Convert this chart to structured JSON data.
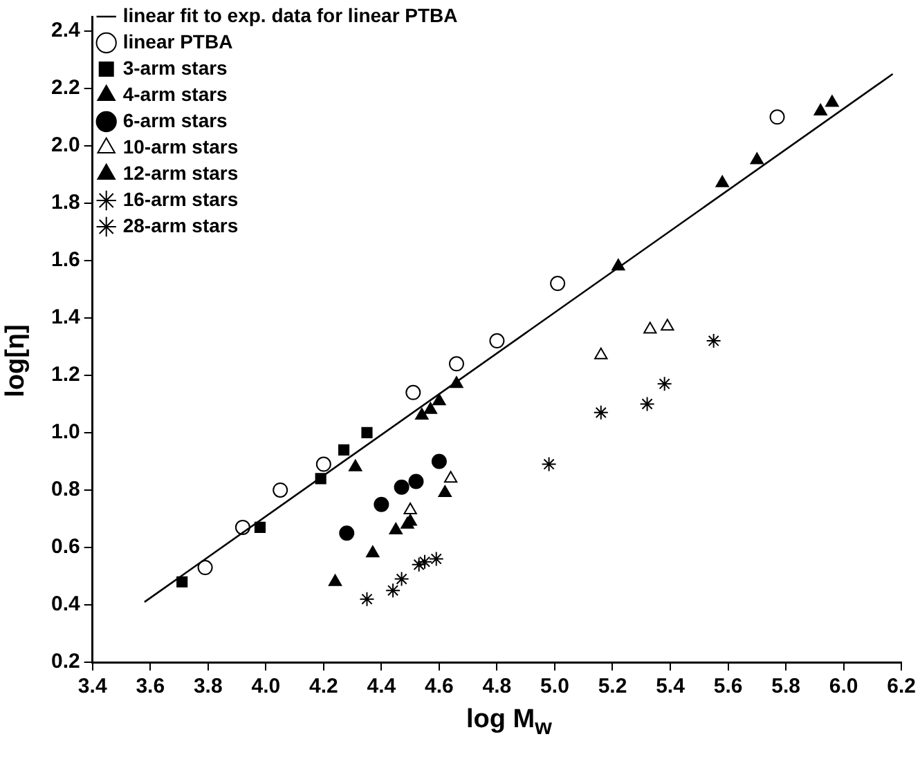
{
  "chart_data": {
    "type": "scatter",
    "xlabel": "log M$_{w}$",
    "ylabel": "log[η]",
    "xlim": [
      3.4,
      6.2
    ],
    "ylim": [
      0.2,
      2.45
    ],
    "xticks": [
      3.4,
      3.6,
      3.8,
      {
        "value": 4,
        "label": "4.0"
      },
      4.2,
      4.4,
      4.6,
      4.8,
      {
        "value": 5,
        "label": "5.0"
      },
      5.2,
      5.4,
      5.6,
      5.8,
      {
        "value": 6,
        "label": "6.0"
      },
      6.2
    ],
    "yticks": [
      0.2,
      0.4,
      0.6,
      0.8,
      {
        "value": 1,
        "label": "1.0"
      },
      1.2,
      1.4,
      1.6,
      1.8,
      {
        "value": 2,
        "label": "2.0"
      },
      2.2,
      2.4
    ],
    "grid": false,
    "legend": "top left",
    "series": [
      {
        "name": "linear fit to exp. data for linear PTBA",
        "type": "line",
        "color": "#000000",
        "marker": "none",
        "line_style": "solid",
        "x": [
          3.58,
          6.17
        ],
        "values": [
          0.41,
          2.25
        ]
      },
      {
        "name": "linear PTBA",
        "color": "#000000",
        "marker": "circle",
        "colors": [
          "#ffffff",
          "#ffffff",
          "#ffffff",
          "#ffffff",
          "#ffffff",
          "#ffffff",
          "#ffffff",
          "#ffffff",
          "#ffffff"
        ],
        "x": [
          3.79,
          3.92,
          4.05,
          4.2,
          4.51,
          4.66,
          4.8,
          5.01,
          5.77
        ],
        "values": [
          0.53,
          0.67,
          0.8,
          0.89,
          1.14,
          1.24,
          1.32,
          1.52,
          2.1
        ]
      },
      {
        "name": "3-arm stars",
        "color": "#000000",
        "marker": "square",
        "x": [
          3.71,
          3.98,
          4.19,
          4.27,
          4.35
        ],
        "values": [
          0.48,
          0.67,
          0.84,
          0.94,
          1.0
        ]
      },
      {
        "name": "4-arm stars",
        "color": "#000000",
        "marker": "triangle",
        "x": [
          4.31,
          4.54,
          4.57,
          4.6,
          4.66,
          5.22,
          5.58,
          5.7,
          5.92,
          5.96
        ],
        "values": [
          0.88,
          1.06,
          1.08,
          1.11,
          1.17,
          1.58,
          1.87,
          1.95,
          2.12,
          2.15
        ]
      },
      {
        "name": "6-arm stars",
        "color": "#000000",
        "marker": "circle",
        "x": [
          4.28,
          4.4,
          4.47,
          4.52,
          4.6
        ],
        "values": [
          0.65,
          0.75,
          0.81,
          0.83,
          0.9
        ]
      },
      {
        "name": "10-arm stars",
        "color": "#000000",
        "marker": "triangle",
        "colors": [
          "#ffffff",
          "#ffffff",
          "#ffffff",
          "#ffffff",
          "#ffffff"
        ],
        "x": [
          4.5,
          4.64,
          5.16,
          5.33,
          5.39
        ],
        "values": [
          0.73,
          0.84,
          1.27,
          1.36,
          1.37
        ]
      },
      {
        "name": "12-arm stars",
        "color": "#000000",
        "marker": "triangle",
        "x": [
          4.24,
          4.37,
          4.45,
          4.49,
          4.5,
          4.62
        ],
        "values": [
          0.48,
          0.58,
          0.66,
          0.68,
          0.69,
          0.79
        ]
      },
      {
        "name": "16-arm stars",
        "color": "#000000",
        "marker": "cross",
        "x": [
          4.35,
          4.44,
          4.47,
          4.53,
          4.55,
          4.59
        ],
        "values": [
          0.42,
          0.45,
          0.49,
          0.54,
          0.55,
          0.56
        ]
      },
      {
        "name": "28-arm stars",
        "color": "#000000",
        "marker": "cross",
        "x": [
          4.98,
          5.16,
          5.32,
          5.38,
          5.55
        ],
        "values": [
          0.89,
          1.07,
          1.1,
          1.17,
          1.32
        ]
      }
    ]
  }
}
